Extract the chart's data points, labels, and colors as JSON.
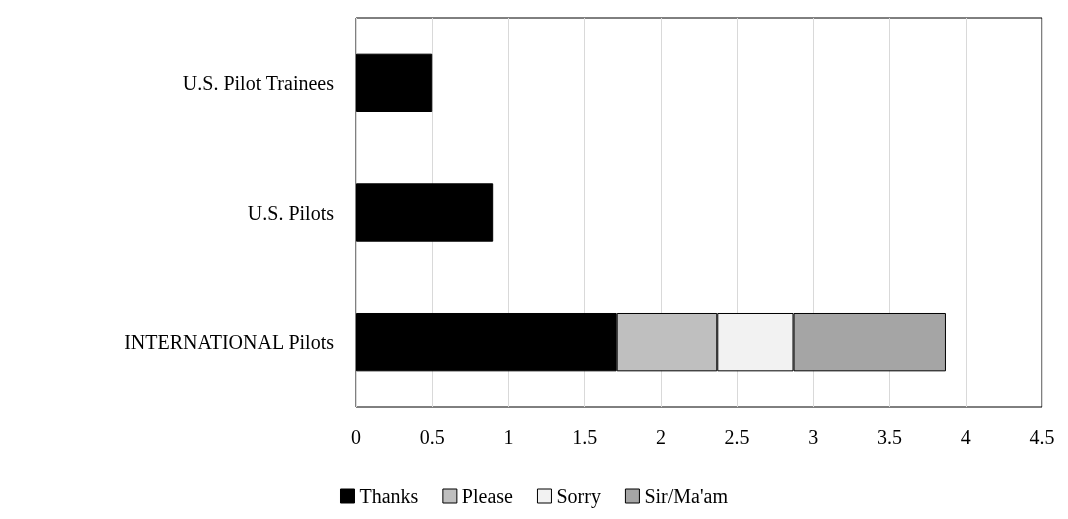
{
  "chart_data": {
    "type": "bar",
    "orientation": "horizontal",
    "stacked": true,
    "categories": [
      "U.S. Pilot Trainees",
      "U.S. Pilots",
      "INTERNATIONAL Pilots"
    ],
    "series": [
      {
        "name": "Thanks",
        "color": "#000000",
        "values": [
          0.5,
          0.9,
          1.71
        ]
      },
      {
        "name": "Please",
        "color": "#bfbfbf",
        "values": [
          null,
          null,
          0.66
        ]
      },
      {
        "name": "Sorry",
        "color": "#f2f2f2",
        "values": [
          null,
          null,
          0.5
        ]
      },
      {
        "name": "Sir/Ma'am",
        "color": "#a5a5a5",
        "values": [
          null,
          null,
          1.0
        ]
      }
    ],
    "xlim": [
      0,
      4.5
    ],
    "xticks": [
      0,
      0.5,
      1,
      1.5,
      2,
      2.5,
      3,
      3.5,
      4,
      4.5
    ],
    "grid": "x",
    "legend": "bottom"
  }
}
